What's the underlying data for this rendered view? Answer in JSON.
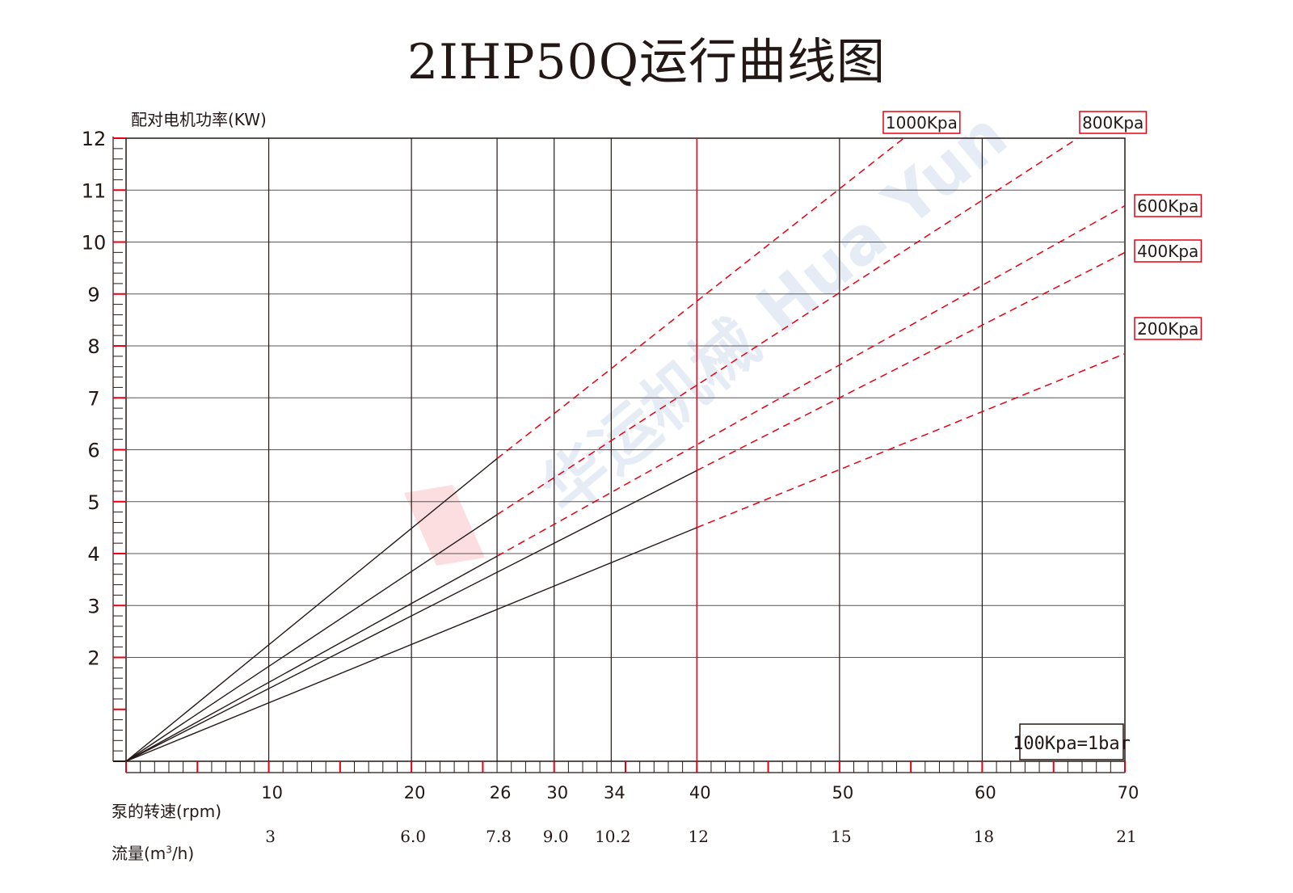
{
  "title": "2IHP50Q运行曲线图",
  "y_axis_label": "配对电机功率(KW)",
  "x_axis_label_rpm": "泵的转速(rpm)",
  "x_axis_label_flow_prefix": "流量(m",
  "x_axis_label_flow_sup": "3",
  "x_axis_label_flow_suffix": "/h)",
  "note_box": "100Kpa=1bar",
  "watermark": "华运机械 Hua Yun",
  "colors": {
    "red": "#e60012",
    "black": "#231815",
    "grid": "#595757"
  },
  "chart_data": {
    "type": "line",
    "title": "2IHP50Q运行曲线图",
    "xlabel": "泵的转速(rpm)",
    "ylabel": "配对电机功率(KW)",
    "xlim": [
      0,
      70
    ],
    "ylim": [
      0,
      12
    ],
    "grid": true,
    "y_ticks": [
      2,
      3,
      4,
      5,
      6,
      7,
      8,
      9,
      10,
      11,
      12
    ],
    "x_ticks_rpm": [
      10,
      20,
      26,
      30,
      34,
      40,
      50,
      60,
      70
    ],
    "x_ticks_flow": [
      "3",
      "6.0",
      "7.8",
      "9.0",
      "10.2",
      "12",
      "15",
      "18",
      "21"
    ],
    "red_reference_rpm": 40,
    "series": [
      {
        "name": "1000Kpa",
        "solid": {
          "x": [
            0,
            26
          ],
          "y": [
            0,
            5.83
          ]
        },
        "dashed": {
          "x": [
            26,
            54.5
          ],
          "y": [
            5.83,
            12.0
          ]
        }
      },
      {
        "name": "800Kpa",
        "solid": {
          "x": [
            0,
            26
          ],
          "y": [
            0,
            4.75
          ]
        },
        "dashed": {
          "x": [
            26,
            66.7
          ],
          "y": [
            4.75,
            12.0
          ]
        }
      },
      {
        "name": "600Kpa",
        "solid": {
          "x": [
            0,
            26
          ],
          "y": [
            0,
            3.95
          ]
        },
        "dashed": {
          "x": [
            26,
            70
          ],
          "y": [
            3.95,
            10.7
          ]
        }
      },
      {
        "name": "400Kpa",
        "solid": {
          "x": [
            0,
            40
          ],
          "y": [
            0,
            5.6
          ]
        },
        "dashed": {
          "x": [
            40,
            70
          ],
          "y": [
            5.6,
            9.8
          ]
        }
      },
      {
        "name": "200Kpa",
        "solid": {
          "x": [
            0,
            40
          ],
          "y": [
            0,
            4.5
          ]
        },
        "dashed": {
          "x": [
            40,
            70
          ],
          "y": [
            4.5,
            7.85
          ]
        }
      }
    ]
  }
}
